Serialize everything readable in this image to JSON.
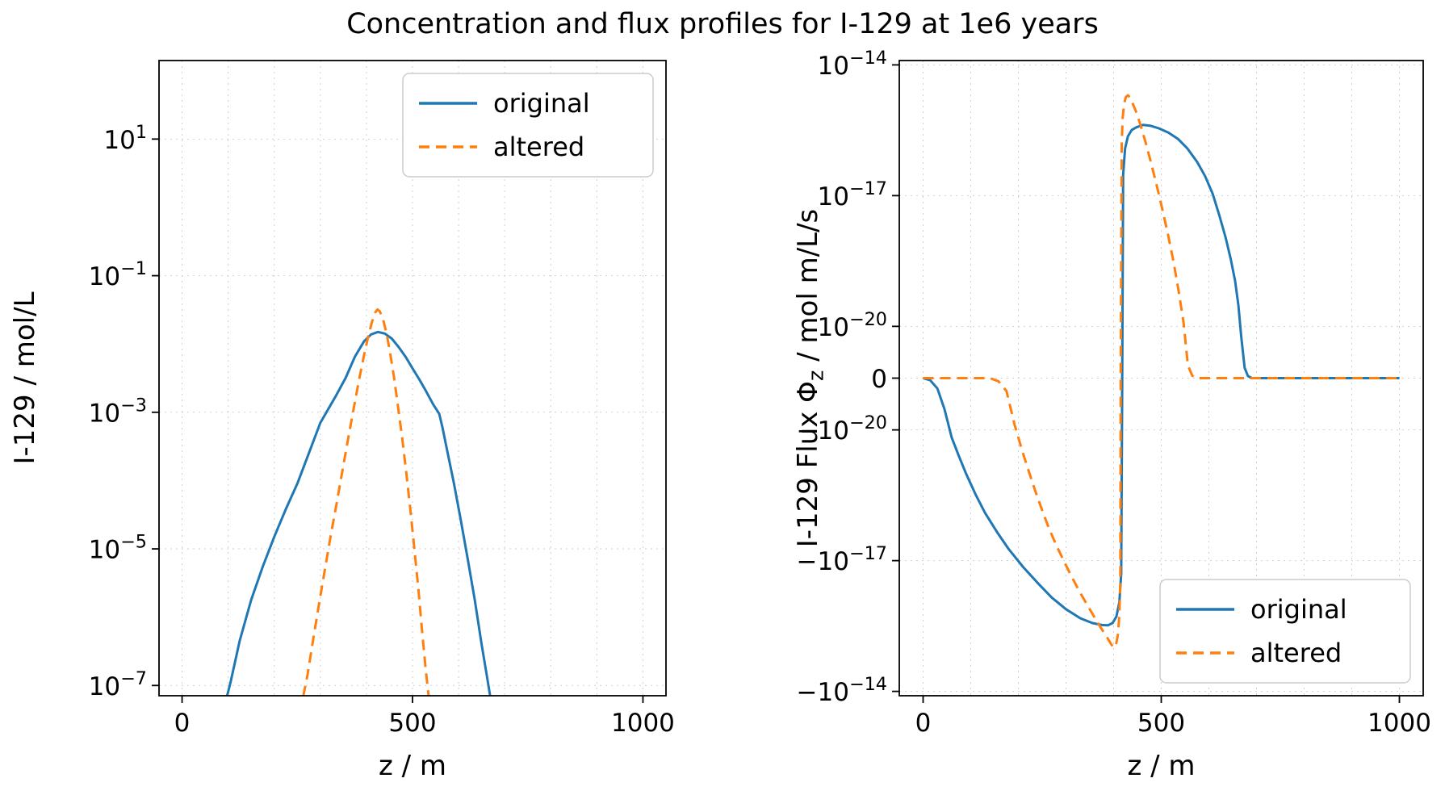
{
  "title": "Concentration and flux profiles for I-129 at 1e6 years",
  "colors": {
    "original": "#1f77b4",
    "altered": "#ff7f0e",
    "grid": "#c9c9d4",
    "axis": "#000000",
    "legend_border": "#cccccc",
    "background": "#ffffff"
  },
  "chart_data": [
    {
      "id": "concentration",
      "type": "line",
      "xlabel": "z / m",
      "ylabel_parts": [
        {
          "t": "I-129 / mol/L"
        }
      ],
      "xscale": "linear",
      "yscale": "log",
      "xlim": [
        -50,
        1050
      ],
      "ylim_exp": [
        -7.15,
        2.15
      ],
      "xticks": [
        0,
        500,
        1000
      ],
      "yticks": [
        {
          "v": 10,
          "label": "10^1"
        },
        {
          "v": 0.1,
          "label": "10^-1"
        },
        {
          "v": 0.001,
          "label": "10^-3"
        },
        {
          "v": 1e-05,
          "label": "10^-5"
        },
        {
          "v": 1e-07,
          "label": "10^-7"
        }
      ],
      "xgrid": [
        0,
        100,
        200,
        300,
        400,
        500,
        600,
        700,
        800,
        900,
        1000
      ],
      "ygrid": [
        10,
        0.1,
        0.001,
        1e-05,
        1e-07
      ],
      "grid": true,
      "legend": {
        "position": "upper-right",
        "entries": [
          "original",
          "altered"
        ]
      },
      "series": [
        {
          "name": "original",
          "color": "#1f77b4",
          "dash": "solid",
          "points": [
            [
              95,
              6e-08
            ],
            [
              105,
              1.1e-07
            ],
            [
              125,
              4.5e-07
            ],
            [
              150,
              1.8e-06
            ],
            [
              175,
              5.5e-06
            ],
            [
              200,
              1.5e-05
            ],
            [
              225,
              3.8e-05
            ],
            [
              250,
              9e-05
            ],
            [
              275,
              0.00025
            ],
            [
              300,
              0.0007
            ],
            [
              315,
              0.00105
            ],
            [
              335,
              0.0018
            ],
            [
              355,
              0.0032
            ],
            [
              375,
              0.0065
            ],
            [
              395,
              0.011
            ],
            [
              410,
              0.0138
            ],
            [
              425,
              0.015
            ],
            [
              440,
              0.0142
            ],
            [
              455,
              0.012
            ],
            [
              470,
              0.009
            ],
            [
              485,
              0.0065
            ],
            [
              500,
              0.0044
            ],
            [
              515,
              0.003
            ],
            [
              530,
              0.002
            ],
            [
              545,
              0.0013
            ],
            [
              558,
              0.00095
            ],
            [
              565,
              0.0006
            ],
            [
              575,
              0.00028
            ],
            [
              590,
              9e-05
            ],
            [
              605,
              2.6e-05
            ],
            [
              620,
              7e-06
            ],
            [
              635,
              1.8e-06
            ],
            [
              650,
              4e-07
            ],
            [
              662,
              1.3e-07
            ],
            [
              670,
              6e-08
            ]
          ]
        },
        {
          "name": "altered",
          "color": "#ff7f0e",
          "dash": "dashed",
          "points": [
            [
              263,
              7e-08
            ],
            [
              272,
              1.4e-07
            ],
            [
              285,
              5e-07
            ],
            [
              298,
              1.7e-06
            ],
            [
              310,
              5e-06
            ],
            [
              322,
              1.5e-05
            ],
            [
              335,
              4.5e-05
            ],
            [
              348,
              0.00014
            ],
            [
              360,
              0.0004
            ],
            [
              372,
              0.0011
            ],
            [
              384,
              0.003
            ],
            [
              395,
              0.007
            ],
            [
              404,
              0.013
            ],
            [
              412,
              0.021
            ],
            [
              419,
              0.029
            ],
            [
              424,
              0.032
            ],
            [
              429,
              0.03
            ],
            [
              436,
              0.023
            ],
            [
              444,
              0.014
            ],
            [
              452,
              0.007
            ],
            [
              460,
              0.0032
            ],
            [
              468,
              0.0013
            ],
            [
              477,
              0.00045
            ],
            [
              486,
              0.00014
            ],
            [
              495,
              4e-05
            ],
            [
              504,
              1e-05
            ],
            [
              513,
              2.5e-06
            ],
            [
              521,
              6e-07
            ],
            [
              529,
              1.6e-07
            ],
            [
              535,
              7e-08
            ]
          ]
        }
      ]
    },
    {
      "id": "flux",
      "type": "line",
      "xlabel": "z / m",
      "ylabel_parts": [
        {
          "t": "I-129 Flux Φ"
        },
        {
          "t": "z",
          "sub": true
        },
        {
          "t": " / mol m/L/s"
        }
      ],
      "xscale": "linear",
      "yscale": "symlog",
      "xlim": [
        -50,
        1050
      ],
      "linthresh_exp": -20,
      "ylim_exp_top": -13.9,
      "linear_fraction": 0.163,
      "xticks": [
        0,
        500,
        1000
      ],
      "yticks": [
        {
          "v": 1e-14,
          "label": "10^-14"
        },
        {
          "v": 1e-17,
          "label": "10^-17"
        },
        {
          "v": 1e-20,
          "label": "10^-20"
        },
        {
          "v": 0,
          "label": "0"
        },
        {
          "v": -1e-20,
          "label": "-10^-20"
        },
        {
          "v": -1e-17,
          "label": "-10^-17"
        },
        {
          "v": -1e-14,
          "label": "-10^-14"
        }
      ],
      "xgrid": [
        0,
        100,
        200,
        300,
        400,
        500,
        600,
        700,
        800,
        900,
        1000
      ],
      "ygrid": [
        1e-14,
        1e-17,
        1e-20,
        0,
        -1e-20,
        -1e-17,
        -1e-14
      ],
      "grid": true,
      "legend": {
        "position": "lower-right",
        "entries": [
          "original",
          "altered"
        ]
      },
      "series": [
        {
          "name": "original",
          "color": "#1f77b4",
          "dash": "solid",
          "points": [
            [
              0,
              0
            ],
            [
              15,
              -4e-22
            ],
            [
              30,
              -2e-21
            ],
            [
              45,
              -6e-21
            ],
            [
              60,
              -1.5e-20
            ],
            [
              75,
              -4e-20
            ],
            [
              90,
              -1e-19
            ],
            [
              110,
              -3e-19
            ],
            [
              130,
              -8e-19
            ],
            [
              155,
              -2.2e-18
            ],
            [
              180,
              -5.5e-18
            ],
            [
              210,
              -1.4e-17
            ],
            [
              240,
              -3.2e-17
            ],
            [
              270,
              -7e-17
            ],
            [
              300,
              -1.3e-16
            ],
            [
              330,
              -2.1e-16
            ],
            [
              355,
              -2.7e-16
            ],
            [
              375,
              -3e-16
            ],
            [
              388,
              -3.05e-16
            ],
            [
              398,
              -2.7e-16
            ],
            [
              406,
              -1.9e-16
            ],
            [
              412,
              -9e-17
            ],
            [
              416,
              -2e-17
            ],
            [
              418,
              -2e-21
            ],
            [
              420,
              3e-17
            ],
            [
              424,
              1.2e-16
            ],
            [
              430,
              2.3e-16
            ],
            [
              438,
              3.2e-16
            ],
            [
              448,
              3.7e-16
            ],
            [
              462,
              4.2e-16
            ],
            [
              478,
              4e-16
            ],
            [
              495,
              3.5e-16
            ],
            [
              515,
              2.8e-16
            ],
            [
              535,
              2e-16
            ],
            [
              555,
              1.2e-16
            ],
            [
              575,
              6e-17
            ],
            [
              592,
              2.8e-17
            ],
            [
              608,
              1.1e-17
            ],
            [
              622,
              3.5e-18
            ],
            [
              635,
              1.1e-18
            ],
            [
              646,
              3.5e-19
            ],
            [
              655,
              1.1e-19
            ],
            [
              662,
              3e-20
            ],
            [
              668,
              8e-21
            ],
            [
              675,
              2e-21
            ],
            [
              682,
              4e-22
            ],
            [
              690,
              0
            ],
            [
              1000,
              0
            ]
          ]
        },
        {
          "name": "altered",
          "color": "#ff7f0e",
          "dash": "dashed",
          "points": [
            [
              0,
              0
            ],
            [
              140,
              0
            ],
            [
              158,
              -6e-22
            ],
            [
              175,
              -2.5e-21
            ],
            [
              192,
              -9e-21
            ],
            [
              208,
              -3e-20
            ],
            [
              222,
              -9e-20
            ],
            [
              236,
              -2.6e-19
            ],
            [
              250,
              -7e-19
            ],
            [
              265,
              -1.9e-18
            ],
            [
              280,
              -4.5e-18
            ],
            [
              297,
              -1.1e-17
            ],
            [
              314,
              -2.6e-17
            ],
            [
              330,
              -5.5e-17
            ],
            [
              346,
              -1.1e-16
            ],
            [
              361,
              -2.1e-16
            ],
            [
              374,
              -3.6e-16
            ],
            [
              385,
              -5.5e-16
            ],
            [
              394,
              -8e-16
            ],
            [
              400,
              -1e-15
            ],
            [
              405,
              -8.5e-16
            ],
            [
              409,
              -5e-16
            ],
            [
              412,
              -1.8e-16
            ],
            [
              414,
              -3e-17
            ],
            [
              415,
              0
            ],
            [
              417,
              1.5e-16
            ],
            [
              419,
              6e-16
            ],
            [
              422,
              1.3e-15
            ],
            [
              426,
              1.85e-15
            ],
            [
              430,
              2e-15
            ],
            [
              434,
              1.8e-15
            ],
            [
              440,
              1.3e-15
            ],
            [
              448,
              8e-16
            ],
            [
              457,
              4e-16
            ],
            [
              467,
              1.7e-16
            ],
            [
              478,
              6e-17
            ],
            [
              490,
              1.8e-17
            ],
            [
              502,
              5e-18
            ],
            [
              514,
              1.3e-18
            ],
            [
              526,
              3e-19
            ],
            [
              537,
              6e-20
            ],
            [
              547,
              1.2e-20
            ],
            [
              556,
              2.5e-21
            ],
            [
              565,
              5e-22
            ],
            [
              573,
              0
            ],
            [
              1000,
              0
            ]
          ]
        }
      ]
    }
  ]
}
